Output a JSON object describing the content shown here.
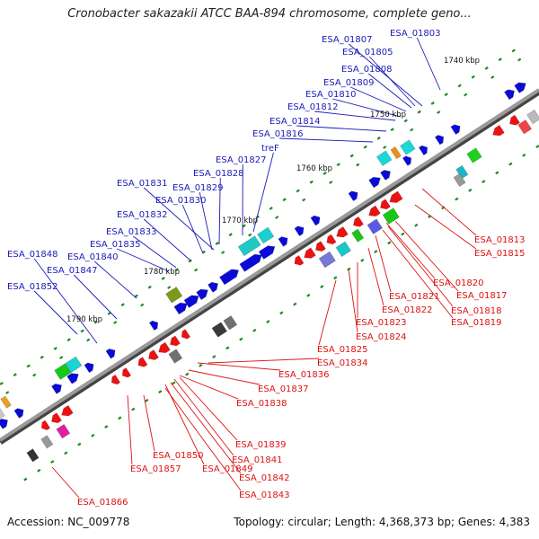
{
  "title": "Cronobacter sakazakii ATCC BAA-894 chromosome, complete geno...",
  "footer": {
    "accession": "Accession: NC_009778",
    "summary": "Topology: circular; Length: 4,368,373 bp; Genes: 4,383"
  },
  "colors": {
    "forward_label": "#1a1ab8",
    "reverse_label": "#dd1111",
    "backbone": "#777777",
    "gene_blue": "#0a0ad8",
    "gene_red": "#ee1111",
    "tick_green": "#1e8a1e"
  },
  "scale_labels": [
    "1740 kbp",
    "1750 kbp",
    "1760 kbp",
    "1770 kbp",
    "1780 kbp",
    "1790 kbp"
  ],
  "top_labels": [
    "ESA_01803",
    "ESA_01807",
    "ESA_01805",
    "ESA_01808",
    "ESA_01809",
    "ESA_01810",
    "ESA_01812",
    "ESA_01814",
    "ESA_01816",
    "treF",
    "ESA_01827",
    "ESA_01828",
    "ESA_01831",
    "ESA_01829",
    "ESA_01830",
    "ESA_01832",
    "ESA_01833",
    "ESA_01835",
    "ESA_01848",
    "ESA_01840",
    "ESA_01847",
    "ESA_01852"
  ],
  "bottom_labels": [
    "ESA_01813",
    "ESA_01815",
    "ESA_01820",
    "ESA_01817",
    "ESA_01821",
    "ESA_01818",
    "ESA_01822",
    "ESA_01819",
    "ESA_01823",
    "ESA_01824",
    "ESA_01825",
    "ESA_01834",
    "ESA_01836",
    "ESA_01837",
    "ESA_01838",
    "ESA_01839",
    "ESA_01850",
    "ESA_01841",
    "ESA_01857",
    "ESA_01849",
    "ESA_01842",
    "ESA_01843",
    "ESA_01866"
  ]
}
